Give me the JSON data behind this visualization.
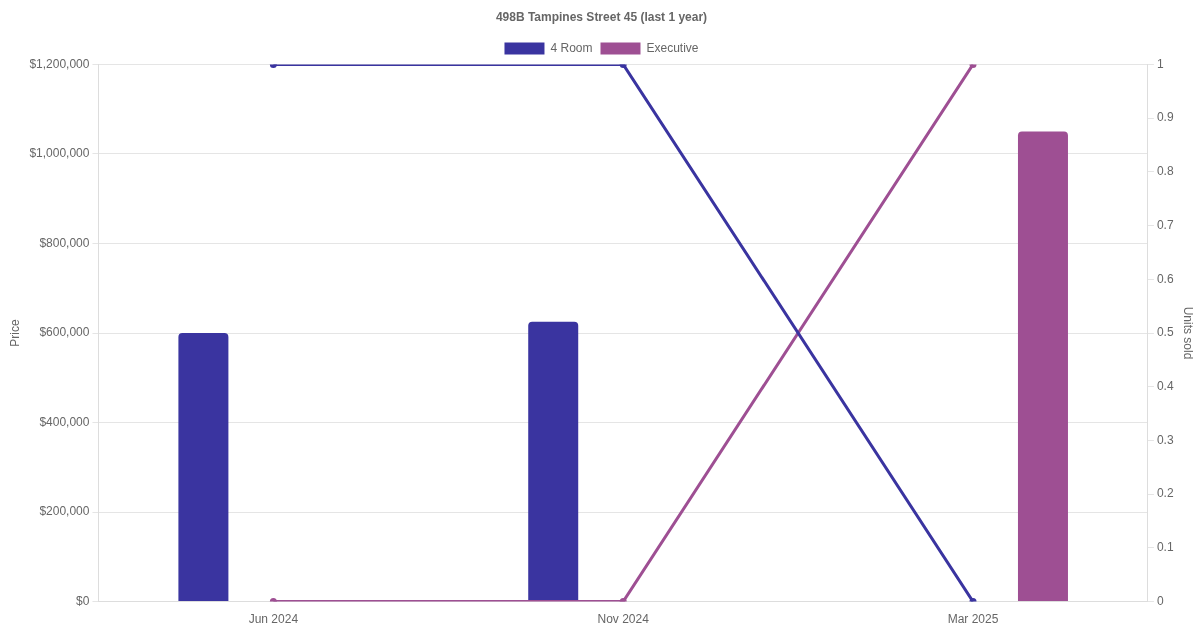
{
  "chart_data": {
    "type": "bar",
    "title": "498B Tampines Street 45 (last 1 year)",
    "ylabel": "Price",
    "y2label": "Units sold",
    "categories": [
      "Jun 2024",
      "Nov 2024",
      "Mar 2025"
    ],
    "series": [
      {
        "name": "4 Room",
        "color": "#3a34a0",
        "values": [
          600000,
          625000,
          null
        ]
      },
      {
        "name": "Executive",
        "color": "#9e4f93",
        "values": [
          null,
          null,
          1050000
        ]
      },
      {
        "type": "line",
        "axis": "y2",
        "color": "#3a34a0",
        "values": [
          1,
          1,
          0
        ]
      },
      {
        "type": "line",
        "axis": "y2",
        "color": "#9e4f93",
        "values": [
          0,
          0,
          1
        ]
      }
    ],
    "ylim": [
      0,
      1200000
    ],
    "yticks": [
      {
        "value": 0,
        "label": "$0"
      },
      {
        "value": 200000,
        "label": "$200,000"
      },
      {
        "value": 400000,
        "label": "$400,000"
      },
      {
        "value": 600000,
        "label": "$600,000"
      },
      {
        "value": 800000,
        "label": "$800,000"
      },
      {
        "value": 1000000,
        "label": "$1,000,000"
      },
      {
        "value": 1200000,
        "label": "$1,200,000"
      }
    ],
    "y2lim": [
      0,
      1
    ],
    "y2ticks": [
      0,
      0.1,
      0.2,
      0.3,
      0.4,
      0.5,
      0.6,
      0.7,
      0.8,
      0.9,
      1
    ],
    "grid": "y",
    "legend": "top",
    "marker": "circle",
    "line_style": "solid"
  }
}
